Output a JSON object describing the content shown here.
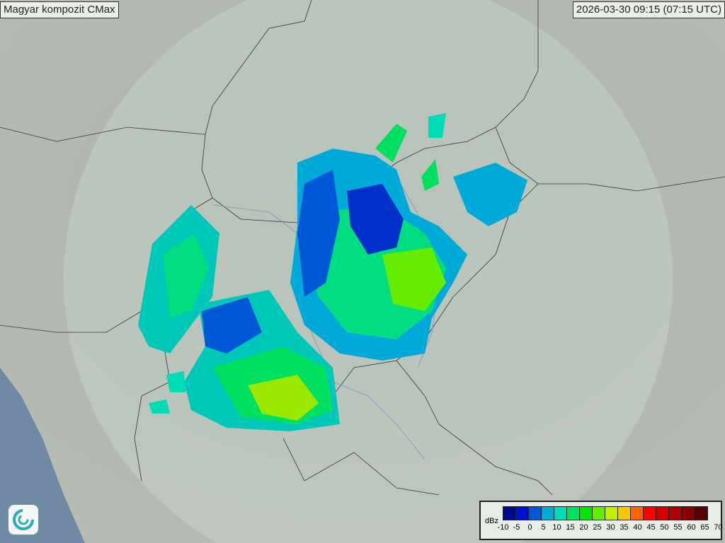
{
  "title": "Magyar kompozit  CMax",
  "timestamp": "2026-03-30 09:15 (07:15 UTC)",
  "legend": {
    "unit": "dBz",
    "ticks": [
      "-10",
      "-5",
      "0",
      "5",
      "10",
      "15",
      "20",
      "25",
      "30",
      "35",
      "40",
      "45",
      "50",
      "55",
      "60",
      "65",
      "70"
    ],
    "colors": [
      "#000a8f",
      "#0010d0",
      "#0058d6",
      "#00aad8",
      "#00dcb8",
      "#00e060",
      "#00e400",
      "#66ec00",
      "#c4ee00",
      "#f8c800",
      "#ff6400",
      "#ff0000",
      "#d60000",
      "#aa0000",
      "#880000",
      "#5a0000"
    ]
  },
  "logo_icon": "met-service-swirl-icon"
}
